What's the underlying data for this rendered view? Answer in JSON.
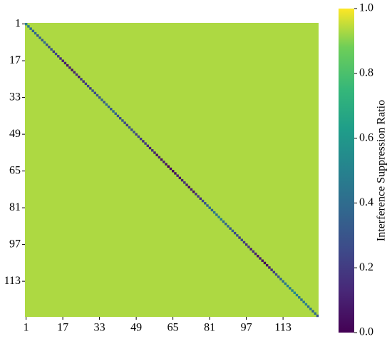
{
  "chart_data": {
    "type": "heatmap",
    "colorbar_label": "Interference Suppression Ratio",
    "colormap": "viridis",
    "xlim": [
      1,
      128
    ],
    "ylim": [
      1,
      128
    ],
    "xticks": [
      1,
      17,
      33,
      49,
      65,
      81,
      97,
      113
    ],
    "yticks": [
      1,
      17,
      33,
      49,
      65,
      81,
      97,
      113
    ],
    "off_diagonal": 0.93,
    "diagonal": [
      0.5,
      0.45,
      0.4,
      0.35,
      0.4,
      0.3,
      0.35,
      0.3,
      0.4,
      0.3,
      0.25,
      0.3,
      0.2,
      0.25,
      0.2,
      0.15,
      0.1,
      0.1,
      0.05,
      0.1,
      0.05,
      0.1,
      0.15,
      0.1,
      0.2,
      0.15,
      0.2,
      0.25,
      0.2,
      0.3,
      0.25,
      0.3,
      0.3,
      0.35,
      0.3,
      0.4,
      0.35,
      0.3,
      0.4,
      0.35,
      0.3,
      0.25,
      0.3,
      0.25,
      0.2,
      0.3,
      0.25,
      0.3,
      0.2,
      0.25,
      0.2,
      0.15,
      0.2,
      0.15,
      0.1,
      0.15,
      0.1,
      0.05,
      0.1,
      0.05,
      0.1,
      0.05,
      0.0,
      0.05,
      0.0,
      0.05,
      0.1,
      0.05,
      0.1,
      0.15,
      0.1,
      0.05,
      0.1,
      0.05,
      0.15,
      0.2,
      0.15,
      0.25,
      0.3,
      0.35,
      0.4,
      0.35,
      0.45,
      0.4,
      0.5,
      0.45,
      0.4,
      0.35,
      0.4,
      0.3,
      0.35,
      0.25,
      0.3,
      0.2,
      0.25,
      0.2,
      0.15,
      0.2,
      0.1,
      0.15,
      0.1,
      0.05,
      0.1,
      0.05,
      0.0,
      0.05,
      0.1,
      0.15,
      0.2,
      0.25,
      0.3,
      0.35,
      0.4,
      0.45,
      0.5,
      0.45,
      0.5,
      0.55,
      0.5,
      0.45,
      0.4,
      0.45,
      0.5,
      0.4,
      0.45,
      0.35,
      0.4,
      0.3
    ],
    "clim": [
      0,
      1
    ],
    "cticks": [
      {
        "value": 0,
        "label": "0.0"
      },
      {
        "value": 0.2,
        "label": "0.2"
      },
      {
        "value": 0.4,
        "label": "0.4"
      },
      {
        "value": 0.6,
        "label": "0.6"
      },
      {
        "value": 0.8,
        "label": "0.8"
      },
      {
        "value": 1,
        "label": "1.0"
      }
    ]
  }
}
